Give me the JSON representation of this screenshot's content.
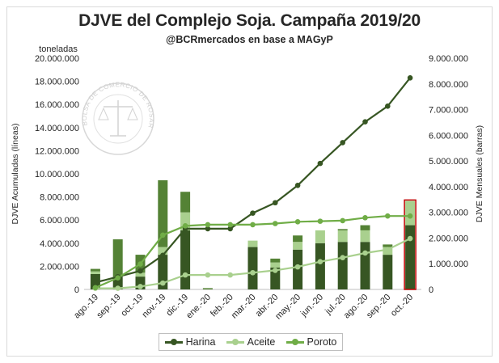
{
  "chart_data": {
    "type": "bar+line",
    "title": "DJVE del Complejo Soja. Campaña 2019/20",
    "subtitle": "@BCRmercados en base a MAGyP",
    "unit_label": "toneladas",
    "categories": [
      "ago.-19",
      "sep.-19",
      "oct.-19",
      "nov.-19",
      "dic.-19",
      "ene.-20",
      "feb.-20",
      "mar.-20",
      "abr.-20",
      "may.-20",
      "jun.-20",
      "jul.-20",
      "ago.-20",
      "sep.-20",
      "oct.-20"
    ],
    "left_axis": {
      "label": "DJVE Acumuladas (líneas)",
      "min": 0,
      "max": 20000000,
      "step": 2000000,
      "tick_labels": [
        "0",
        "2.000.000",
        "4.000.000",
        "6.000.000",
        "8.000.000",
        "10.000.000",
        "12.000.000",
        "14.000.000",
        "16.000.000",
        "18.000.000",
        "20.000.000"
      ]
    },
    "right_axis": {
      "label": "DJVE Mensuales (barras)",
      "min": 0,
      "max": 9000000,
      "step": 1000000,
      "tick_labels": [
        "0",
        "1.000.000",
        "2.000.000",
        "3.000.000",
        "4.000.000",
        "5.000.000",
        "6.000.000",
        "7.000.000",
        "8.000.000",
        "9.000.000"
      ]
    },
    "bars_monthly": [
      {
        "name": "Harina",
        "color": "#375623",
        "values": [
          600000,
          500000,
          500000,
          1350000,
          2300000,
          0,
          0,
          1650000,
          850000,
          1550000,
          1800000,
          1850000,
          1850000,
          1350000,
          2500000
        ]
      },
      {
        "name": "Aceite",
        "color": "#a9d08e",
        "values": [
          100000,
          0,
          150000,
          300000,
          700000,
          0,
          0,
          250000,
          200000,
          300000,
          500000,
          450000,
          450000,
          300000,
          950000
        ]
      },
      {
        "name": "Poroto",
        "color": "#548235",
        "values": [
          100000,
          1450000,
          700000,
          2600000,
          800000,
          50000,
          0,
          0,
          150000,
          250000,
          0,
          50000,
          200000,
          100000,
          0
        ]
      }
    ],
    "lines_cumulative": [
      {
        "name": "Harina",
        "color": "#375623",
        "values": [
          600000,
          1100000,
          1600000,
          2950000,
          5250000,
          5250000,
          5250000,
          6600000,
          7500000,
          9000000,
          10900000,
          12700000,
          14500000,
          15850000,
          18300000
        ]
      },
      {
        "name": "Aceite",
        "color": "#a9d08e",
        "values": [
          100000,
          100000,
          250000,
          550000,
          1250000,
          1250000,
          1250000,
          1450000,
          1650000,
          1950000,
          2400000,
          2750000,
          3150000,
          3450000,
          4400000
        ]
      },
      {
        "name": "Poroto",
        "color": "#70ad47",
        "values": [
          150000,
          1000000,
          2200000,
          4700000,
          5500000,
          5600000,
          5600000,
          5600000,
          5700000,
          5850000,
          5900000,
          5950000,
          6200000,
          6350000,
          6350000
        ]
      }
    ],
    "highlight_category": "oct.-20",
    "watermark": "BOLSA DE COMERCIO DE ROSARIO",
    "legend": [
      "Harina",
      "Aceite",
      "Poroto"
    ],
    "legend_position": "bottom"
  }
}
